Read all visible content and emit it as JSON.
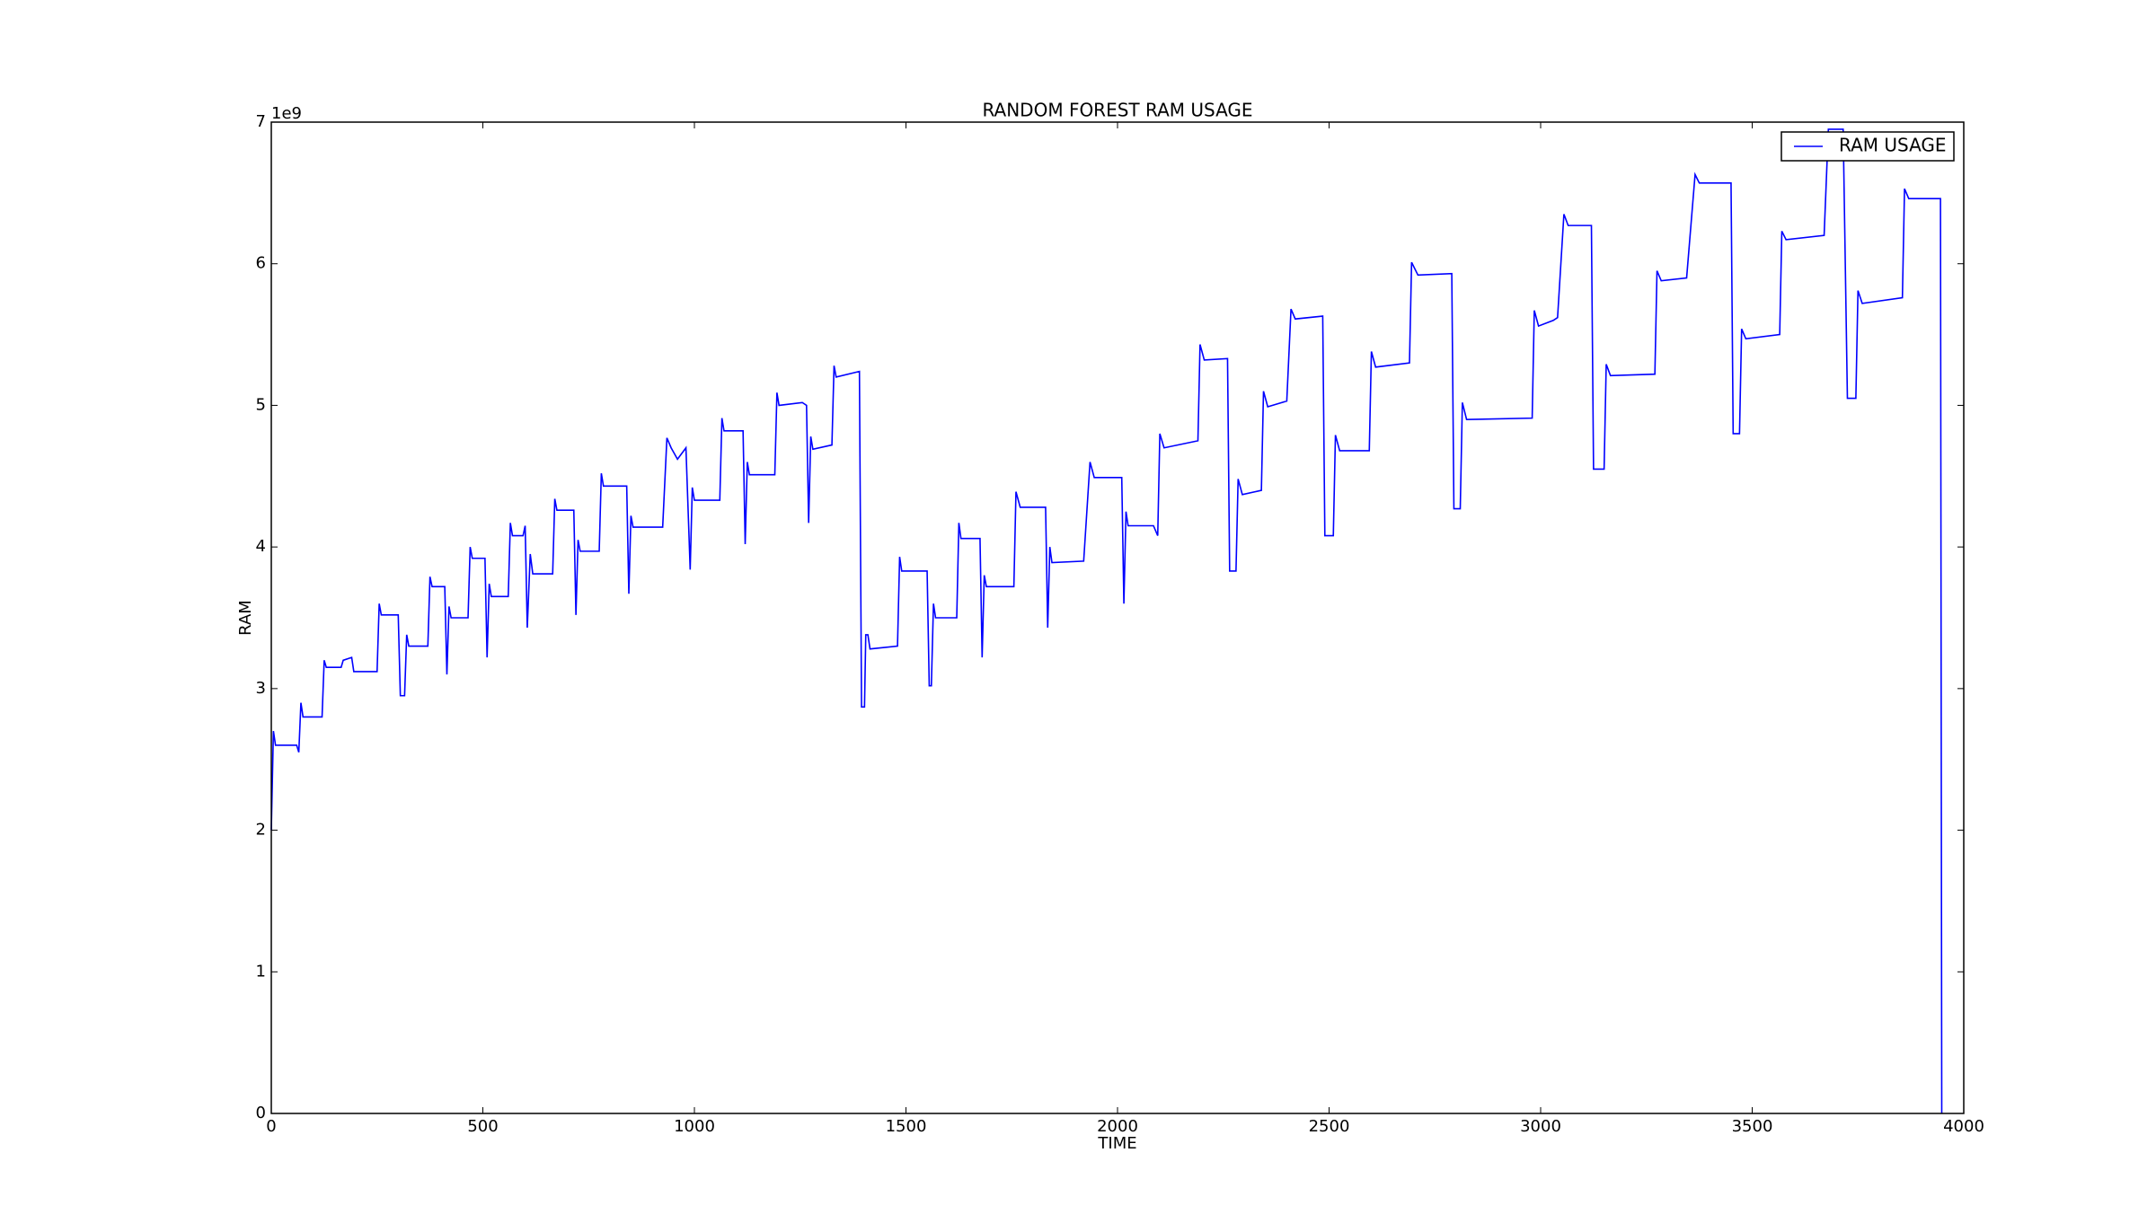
{
  "chart_data": {
    "type": "line",
    "title": "RANDOM FOREST RAM USAGE",
    "x_label": "TIME",
    "y_label": "RAM",
    "y_offset_label": "1e9",
    "x": [
      0,
      5,
      10,
      60,
      65,
      70,
      75,
      120,
      125,
      130,
      165,
      170,
      190,
      195,
      250,
      255,
      260,
      300,
      305,
      315,
      320,
      325,
      370,
      375,
      380,
      410,
      415,
      420,
      425,
      465,
      470,
      475,
      505,
      510,
      515,
      520,
      560,
      565,
      570,
      595,
      600,
      605,
      612,
      618,
      665,
      670,
      675,
      715,
      720,
      725,
      730,
      775,
      780,
      785,
      840,
      845,
      850,
      855,
      925,
      935,
      945,
      960,
      980,
      990,
      995,
      1000,
      1060,
      1065,
      1070,
      1115,
      1120,
      1125,
      1130,
      1190,
      1195,
      1200,
      1255,
      1265,
      1270,
      1275,
      1280,
      1325,
      1330,
      1335,
      1390,
      1395,
      1402,
      1405,
      1410,
      1415,
      1480,
      1485,
      1490,
      1550,
      1555,
      1560,
      1565,
      1570,
      1620,
      1625,
      1630,
      1675,
      1680,
      1685,
      1690,
      1755,
      1760,
      1770,
      1830,
      1835,
      1840,
      1845,
      1920,
      1935,
      1945,
      2010,
      2015,
      2020,
      2025,
      2085,
      2095,
      2100,
      2110,
      2190,
      2195,
      2205,
      2260,
      2265,
      2280,
      2285,
      2295,
      2340,
      2345,
      2355,
      2400,
      2410,
      2420,
      2485,
      2490,
      2510,
      2515,
      2525,
      2595,
      2600,
      2610,
      2690,
      2695,
      2710,
      2790,
      2795,
      2810,
      2815,
      2825,
      2980,
      2985,
      2995,
      3030,
      3040,
      3055,
      3065,
      3120,
      3125,
      3150,
      3155,
      3165,
      3270,
      3275,
      3285,
      3345,
      3365,
      3375,
      3450,
      3455,
      3470,
      3475,
      3485,
      3565,
      3570,
      3580,
      3670,
      3680,
      3695,
      3715,
      3725,
      3745,
      3750,
      3760,
      3855,
      3860,
      3870,
      3945,
      3948
    ],
    "series": [
      {
        "name": "RAM USAGE",
        "color": "#0000ff",
        "values": [
          2.0,
          2.7,
          2.6,
          2.6,
          2.55,
          2.9,
          2.8,
          2.8,
          3.2,
          3.15,
          3.15,
          3.2,
          3.22,
          3.12,
          3.12,
          3.6,
          3.52,
          3.52,
          2.95,
          2.95,
          3.38,
          3.3,
          3.3,
          3.79,
          3.72,
          3.72,
          3.1,
          3.58,
          3.5,
          3.5,
          4.0,
          3.92,
          3.92,
          3.22,
          3.74,
          3.65,
          3.65,
          4.17,
          4.08,
          4.08,
          4.15,
          3.43,
          3.95,
          3.81,
          3.81,
          4.34,
          4.26,
          4.26,
          3.52,
          4.05,
          3.97,
          3.97,
          4.52,
          4.43,
          4.43,
          3.67,
          4.22,
          4.14,
          4.14,
          4.77,
          4.7,
          4.62,
          4.7,
          3.84,
          4.42,
          4.33,
          4.33,
          4.91,
          4.82,
          4.82,
          4.02,
          4.6,
          4.51,
          4.51,
          5.09,
          5.0,
          5.02,
          5.0,
          4.17,
          4.78,
          4.69,
          4.72,
          5.28,
          5.2,
          5.24,
          2.87,
          2.87,
          3.38,
          3.38,
          3.28,
          3.3,
          3.93,
          3.83,
          3.83,
          3.02,
          3.02,
          3.6,
          3.5,
          3.5,
          4.17,
          4.06,
          4.06,
          3.22,
          3.8,
          3.72,
          3.72,
          4.39,
          4.28,
          4.28,
          3.43,
          4.0,
          3.89,
          3.9,
          4.6,
          4.49,
          4.49,
          3.6,
          4.25,
          4.15,
          4.15,
          4.08,
          4.8,
          4.7,
          4.75,
          5.43,
          5.32,
          5.33,
          3.83,
          3.83,
          4.48,
          4.37,
          4.4,
          5.1,
          4.99,
          5.03,
          5.68,
          5.61,
          5.63,
          4.08,
          4.08,
          4.79,
          4.68,
          4.68,
          5.38,
          5.27,
          5.3,
          6.01,
          5.92,
          5.93,
          4.27,
          4.27,
          5.02,
          4.9,
          4.91,
          5.67,
          5.56,
          5.6,
          5.62,
          6.35,
          6.27,
          6.27,
          4.55,
          4.55,
          5.29,
          5.21,
          5.22,
          5.95,
          5.88,
          5.9,
          6.63,
          6.57,
          6.57,
          4.8,
          4.8,
          5.54,
          5.47,
          5.5,
          6.23,
          6.17,
          6.2,
          6.95,
          6.95,
          6.95,
          5.05,
          5.05,
          5.81,
          5.72,
          5.76,
          6.53,
          6.46,
          6.46,
          0
        ]
      }
    ],
    "xlim": [
      0,
      4000
    ],
    "ylim": [
      0,
      7
    ],
    "xticks": [
      0,
      500,
      1000,
      1500,
      2000,
      2500,
      3000,
      3500,
      4000
    ],
    "yticks": [
      0,
      1,
      2,
      3,
      4,
      5,
      6,
      7
    ],
    "legend": "upper right",
    "grid": false
  }
}
